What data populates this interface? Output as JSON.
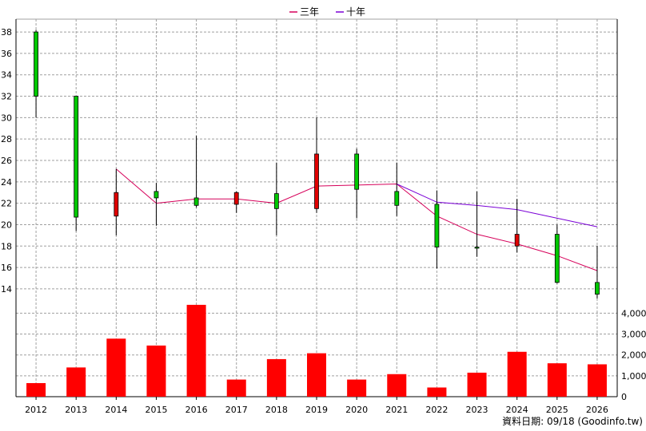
{
  "chart_data": {
    "type": "candlestick",
    "legend": {
      "placement": "top-center",
      "items": [
        {
          "label": "三年",
          "color": "#d6005a"
        },
        {
          "label": "十年",
          "color": "#7a00d6"
        }
      ]
    },
    "categories": [
      "2012",
      "2013",
      "2014",
      "2015",
      "2016",
      "2017",
      "2018",
      "2019",
      "2020",
      "2021",
      "2022",
      "2023",
      "2024",
      "2025",
      "2026"
    ],
    "price_axis": {
      "ticks": [
        14,
        16,
        18,
        20,
        22,
        24,
        26,
        28,
        30,
        32,
        34,
        36,
        38
      ],
      "range": [
        12.8,
        39.2
      ],
      "position": "left"
    },
    "volume_axis": {
      "ticks": [
        0,
        1000,
        2000,
        3000,
        4000
      ],
      "tick_labels": [
        "0",
        "1,000",
        "2,000",
        "3,000",
        "4,000"
      ],
      "range": [
        0,
        4550
      ],
      "position": "right"
    },
    "grid": true,
    "candles": [
      {
        "year": "2012",
        "open": 32.0,
        "close": 38.0,
        "high": 38.2,
        "low": 30.0
      },
      {
        "year": "2013",
        "open": 20.7,
        "close": 32.0,
        "high": 32.0,
        "low": 19.4
      },
      {
        "year": "2014",
        "open": 23.0,
        "close": 20.8,
        "high": 25.2,
        "low": 19.0
      },
      {
        "year": "2015",
        "open": 22.5,
        "close": 23.1,
        "high": 23.9,
        "low": 19.9
      },
      {
        "year": "2016",
        "open": 21.8,
        "close": 22.5,
        "high": 28.3,
        "low": 21.6
      },
      {
        "year": "2017",
        "open": 23.0,
        "close": 21.9,
        "high": 23.1,
        "low": 21.1
      },
      {
        "year": "2018",
        "open": 21.5,
        "close": 22.9,
        "high": 25.8,
        "low": 19.0
      },
      {
        "year": "2019",
        "open": 26.6,
        "close": 21.5,
        "high": 30.0,
        "low": 21.1
      },
      {
        "year": "2020",
        "open": 23.3,
        "close": 26.6,
        "high": 27.1,
        "low": 20.6
      },
      {
        "year": "2021",
        "open": 21.8,
        "close": 23.1,
        "high": 25.8,
        "low": 20.8
      },
      {
        "year": "2022",
        "open": 17.9,
        "close": 21.9,
        "high": 23.2,
        "low": 15.9
      },
      {
        "year": "2023",
        "open": 17.8,
        "close": 17.9,
        "high": 23.1,
        "low": 17.0
      },
      {
        "year": "2024",
        "open": 19.1,
        "close": 18.0,
        "high": 22.4,
        "low": 17.4
      },
      {
        "year": "2025",
        "open": 14.6,
        "close": 19.1,
        "high": 20.0,
        "low": 14.5
      },
      {
        "year": "2026",
        "open": 13.5,
        "close": 14.6,
        "high": 18.0,
        "low": 13.1
      }
    ],
    "volume": [
      650,
      1400,
      2780,
      2450,
      4400,
      820,
      1800,
      2080,
      820,
      1080,
      440,
      1150,
      2150,
      1600,
      1550
    ],
    "ma_series": [
      {
        "name": "三年",
        "color": "#d6005a",
        "values": [
          null,
          null,
          25.2,
          22.0,
          22.4,
          22.4,
          22.0,
          23.6,
          23.7,
          23.8,
          20.8,
          19.1,
          18.2,
          17.1,
          15.7
        ]
      },
      {
        "name": "十年",
        "color": "#7a00d6",
        "values": [
          null,
          null,
          null,
          null,
          null,
          null,
          null,
          null,
          null,
          23.8,
          22.1,
          21.8,
          21.4,
          20.6,
          19.8
        ]
      }
    ],
    "colors": {
      "up": "#00c800",
      "down": "#e00000",
      "volume_bar": "#ff0000",
      "grid": "#a0a0a0",
      "axis": "#000000"
    },
    "footer": "資料日期: 09/18  (Goodinfo.tw)"
  }
}
